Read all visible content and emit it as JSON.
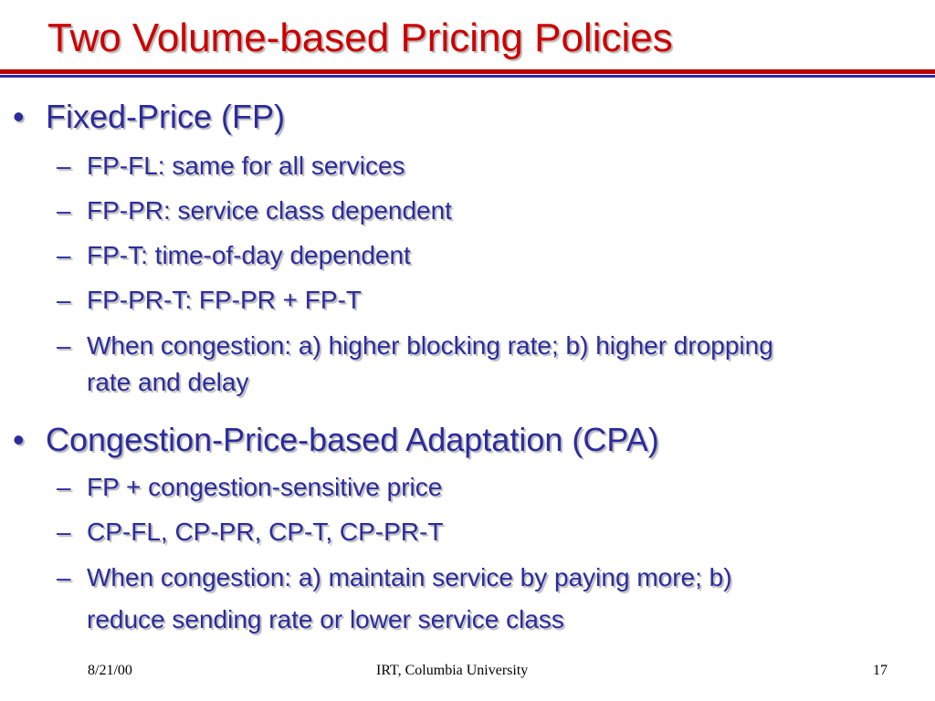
{
  "slide": {
    "title": "Two Volume-based Pricing Policies",
    "sections": [
      {
        "heading": "Fixed-Price (FP)",
        "items": [
          "FP-FL: same for all services",
          "FP-PR: service class dependent",
          "FP-T: time-of-day dependent",
          "FP-PR-T: FP-PR + FP-T",
          "When congestion: a) higher blocking rate; b) higher dropping",
          "rate and delay"
        ]
      },
      {
        "heading": "Congestion-Price-based Adaptation (CPA)",
        "items": [
          "FP + congestion-sensitive price",
          "CP-FL, CP-PR, CP-T, CP-PR-T",
          "When congestion: a) maintain service by paying more; b)",
          "reduce sending rate or lower service class"
        ]
      }
    ],
    "bullet_symbol": "•",
    "sub_bullet_symbol": "–"
  },
  "footer": {
    "date": "8/21/00",
    "center": "IRT, Columbia University",
    "page_number": "17"
  }
}
